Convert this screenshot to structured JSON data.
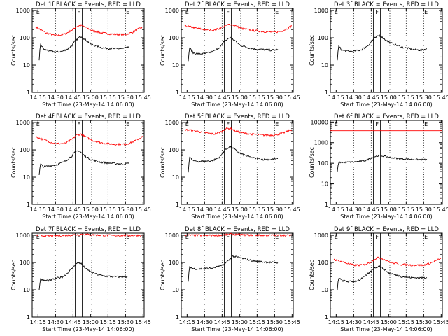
{
  "shared": {
    "ylabel": "Counts/sec",
    "xlabel": "Start Time (23-May-14 14:06:00)",
    "x_ticks": [
      "14:15",
      "14:30",
      "14:45",
      "15:00",
      "15:15",
      "15:30",
      "15:45"
    ],
    "x_tick_minutes": [
      15,
      30,
      45,
      60,
      75,
      90,
      105
    ],
    "markers": [
      {
        "label": "E",
        "minute": 15
      },
      {
        "label": "F",
        "minute": 50
      },
      {
        "label": "E",
        "minute": 92
      }
    ],
    "flare_lines": [
      47,
      53
    ],
    "dotted_lines": [
      30,
      45,
      61,
      75,
      90
    ],
    "colors": {
      "events": "#000000",
      "lld": "#ff0000"
    }
  },
  "chart_data": [
    {
      "type": "line",
      "title": "Det 1f BLACK = Events, RED = LLD",
      "xlim": [
        10,
        106
      ],
      "ylim": [
        1,
        1200
      ],
      "yscale": "log",
      "y_ticks": [
        "1",
        "10",
        "100",
        "1000"
      ],
      "series": [
        {
          "name": "RED = LLD",
          "color": "#ff0000",
          "x": [
            13,
            22,
            30,
            38,
            44,
            48,
            52,
            56,
            62,
            70,
            80,
            90,
            96,
            100,
            105
          ],
          "y": [
            250,
            150,
            120,
            135,
            190,
            260,
            290,
            240,
            180,
            150,
            135,
            130,
            160,
            200,
            250
          ]
        },
        {
          "name": "BLACK = Events",
          "color": "#000000",
          "x": [
            16,
            17,
            20,
            25,
            30,
            36,
            40,
            44,
            47,
            50,
            52,
            55,
            60,
            66,
            72,
            80,
            88,
            93
          ],
          "y": [
            15,
            60,
            38,
            33,
            30,
            32,
            38,
            52,
            78,
            100,
            115,
            90,
            60,
            48,
            42,
            40,
            40,
            45
          ]
        }
      ]
    },
    {
      "type": "line",
      "title": "Det 2f BLACK = Events, RED = LLD",
      "xlim": [
        10,
        106
      ],
      "ylim": [
        1,
        1200
      ],
      "yscale": "log",
      "y_ticks": [
        "1",
        "10",
        "100",
        "1000"
      ],
      "series": [
        {
          "name": "RED = LLD",
          "color": "#ff0000",
          "x": [
            13,
            22,
            30,
            38,
            44,
            48,
            52,
            56,
            62,
            70,
            80,
            90,
            96,
            100,
            105
          ],
          "y": [
            280,
            230,
            200,
            190,
            230,
            280,
            320,
            280,
            220,
            190,
            170,
            160,
            175,
            210,
            280
          ]
        },
        {
          "name": "BLACK = Events",
          "color": "#000000",
          "x": [
            16,
            17,
            20,
            25,
            30,
            36,
            40,
            44,
            47,
            50,
            52,
            55,
            60,
            66,
            72,
            80,
            88,
            93
          ],
          "y": [
            14,
            45,
            28,
            26,
            26,
            30,
            36,
            50,
            75,
            90,
            105,
            85,
            55,
            45,
            40,
            37,
            35,
            38
          ]
        }
      ]
    },
    {
      "type": "line",
      "title": "Det 3f BLACK = Events, RED = LLD",
      "xlim": [
        10,
        106
      ],
      "ylim": [
        1,
        1200
      ],
      "yscale": "log",
      "y_ticks": [
        "1",
        "10",
        "100",
        "1000"
      ],
      "series": [
        {
          "name": "BLACK = Events",
          "color": "#000000",
          "x": [
            16,
            17,
            20,
            25,
            30,
            36,
            40,
            44,
            47,
            50,
            52,
            55,
            60,
            66,
            72,
            80,
            88,
            93
          ],
          "y": [
            15,
            50,
            35,
            32,
            32,
            36,
            44,
            62,
            90,
            110,
            125,
            100,
            70,
            55,
            45,
            38,
            35,
            40
          ]
        }
      ]
    },
    {
      "type": "line",
      "title": "Det 4f BLACK = Events, RED = LLD",
      "xlim": [
        10,
        106
      ],
      "ylim": [
        1,
        1200
      ],
      "yscale": "log",
      "y_ticks": [
        "1",
        "10",
        "100",
        "1000"
      ],
      "series": [
        {
          "name": "RED = LLD",
          "color": "#ff0000",
          "x": [
            13,
            22,
            30,
            38,
            44,
            48,
            52,
            56,
            62,
            70,
            80,
            90,
            96,
            100,
            105
          ],
          "y": [
            300,
            220,
            170,
            170,
            240,
            350,
            380,
            300,
            220,
            180,
            160,
            160,
            190,
            240,
            310
          ]
        },
        {
          "name": "BLACK = Events",
          "color": "#000000",
          "x": [
            16,
            17,
            20,
            25,
            30,
            36,
            40,
            44,
            47,
            50,
            52,
            55,
            60,
            66,
            72,
            80,
            88,
            93
          ],
          "y": [
            12,
            30,
            24,
            26,
            28,
            34,
            44,
            60,
            85,
            95,
            80,
            60,
            45,
            38,
            34,
            32,
            30,
            32
          ]
        }
      ]
    },
    {
      "type": "line",
      "title": "Det 5f BLACK = Events, RED = LLD",
      "xlim": [
        10,
        106
      ],
      "ylim": [
        1,
        1200
      ],
      "yscale": "log",
      "y_ticks": [
        "1",
        "10",
        "100",
        "1000"
      ],
      "series": [
        {
          "name": "RED = LLD",
          "color": "#ff0000",
          "x": [
            13,
            22,
            30,
            38,
            44,
            48,
            52,
            56,
            62,
            70,
            80,
            90,
            96,
            100,
            105
          ],
          "y": [
            550,
            500,
            420,
            380,
            450,
            600,
            620,
            500,
            420,
            380,
            350,
            350,
            400,
            460,
            560
          ]
        },
        {
          "name": "BLACK = Events",
          "color": "#000000",
          "x": [
            16,
            17,
            20,
            25,
            30,
            36,
            40,
            44,
            47,
            50,
            52,
            55,
            60,
            66,
            72,
            80,
            88,
            93
          ],
          "y": [
            15,
            55,
            40,
            38,
            38,
            40,
            46,
            60,
            95,
            120,
            130,
            110,
            75,
            60,
            50,
            45,
            45,
            48
          ]
        }
      ]
    },
    {
      "type": "line",
      "title": "Det 6f BLACK = Events, RED = LLD",
      "xlim": [
        10,
        106
      ],
      "ylim": [
        1,
        12000
      ],
      "yscale": "log",
      "y_ticks": [
        "1",
        "10",
        "100",
        "1000",
        "10000"
      ],
      "series": [
        {
          "name": "RED = LLD",
          "color": "#ff0000",
          "x": [
            10,
            106
          ],
          "y": [
            3800,
            3800
          ]
        },
        {
          "name": "BLACK = Events",
          "color": "#000000",
          "x": [
            16,
            17,
            20,
            30,
            40,
            44,
            48,
            52,
            56,
            62,
            70,
            80,
            88,
            93
          ],
          "y": [
            40,
            110,
            110,
            115,
            135,
            170,
            210,
            240,
            220,
            190,
            165,
            155,
            150,
            150
          ]
        }
      ]
    },
    {
      "type": "line",
      "title": "Det 7f BLACK = Events, RED = LLD",
      "xlim": [
        10,
        106
      ],
      "ylim": [
        1,
        1200
      ],
      "yscale": "log",
      "y_ticks": [
        "1",
        "10",
        "100",
        "1000"
      ],
      "series": [
        {
          "name": "RED = LLD",
          "color": "#ff0000",
          "x": [
            13,
            22,
            30,
            40,
            48,
            53,
            60,
            70,
            80,
            90,
            100,
            105
          ],
          "y": [
            1000,
            950,
            950,
            1000,
            1050,
            1100,
            1050,
            1000,
            980,
            990,
            1000,
            1000
          ]
        },
        {
          "name": "BLACK = Events",
          "color": "#000000",
          "x": [
            16,
            17,
            20,
            25,
            30,
            36,
            40,
            44,
            47,
            50,
            52,
            55,
            60,
            66,
            72,
            80,
            88,
            92
          ],
          "y": [
            10,
            25,
            22,
            22,
            26,
            30,
            40,
            60,
            85,
            100,
            90,
            65,
            45,
            36,
            32,
            30,
            30,
            30
          ]
        }
      ]
    },
    {
      "type": "line",
      "title": "Det 8f BLACK = Events, RED = LLD",
      "xlim": [
        10,
        106
      ],
      "ylim": [
        1,
        1200
      ],
      "yscale": "log",
      "y_ticks": [
        "1",
        "10",
        "100",
        "1000"
      ],
      "series": [
        {
          "name": "RED = LLD",
          "color": "#ff0000",
          "x": [
            13,
            22,
            30,
            40,
            48,
            53,
            60,
            70,
            80,
            90,
            100,
            105
          ],
          "y": [
            1000,
            1000,
            980,
            1000,
            1050,
            1100,
            1050,
            1020,
            1000,
            1000,
            1000,
            1000
          ]
        },
        {
          "name": "BLACK = Events",
          "color": "#000000",
          "x": [
            16,
            17,
            20,
            25,
            30,
            36,
            40,
            44,
            46,
            53,
            54,
            60,
            66,
            72,
            80,
            88,
            93
          ],
          "y": [
            20,
            70,
            60,
            58,
            60,
            62,
            68,
            75,
            80,
            150,
            170,
            150,
            130,
            115,
            105,
            100,
            98
          ]
        }
      ]
    },
    {
      "type": "line",
      "title": "Det 9f BLACK = Events, RED = LLD",
      "xlim": [
        10,
        106
      ],
      "ylim": [
        1,
        1200
      ],
      "yscale": "log",
      "y_ticks": [
        "1",
        "10",
        "100",
        "1000"
      ],
      "series": [
        {
          "name": "RED = LLD",
          "color": "#ff0000",
          "x": [
            13,
            22,
            30,
            38,
            44,
            48,
            52,
            56,
            62,
            70,
            80,
            90,
            96,
            100,
            105
          ],
          "y": [
            130,
            100,
            80,
            80,
            100,
            135,
            155,
            130,
            100,
            85,
            80,
            80,
            95,
            115,
            140
          ]
        },
        {
          "name": "BLACK = Events",
          "color": "#000000",
          "x": [
            16,
            17,
            20,
            25,
            30,
            36,
            40,
            44,
            47,
            50,
            52,
            55,
            60,
            66,
            72,
            80,
            88,
            93
          ],
          "y": [
            10,
            28,
            22,
            20,
            20,
            24,
            32,
            45,
            60,
            70,
            75,
            60,
            42,
            35,
            30,
            28,
            27,
            28
          ]
        }
      ]
    }
  ]
}
